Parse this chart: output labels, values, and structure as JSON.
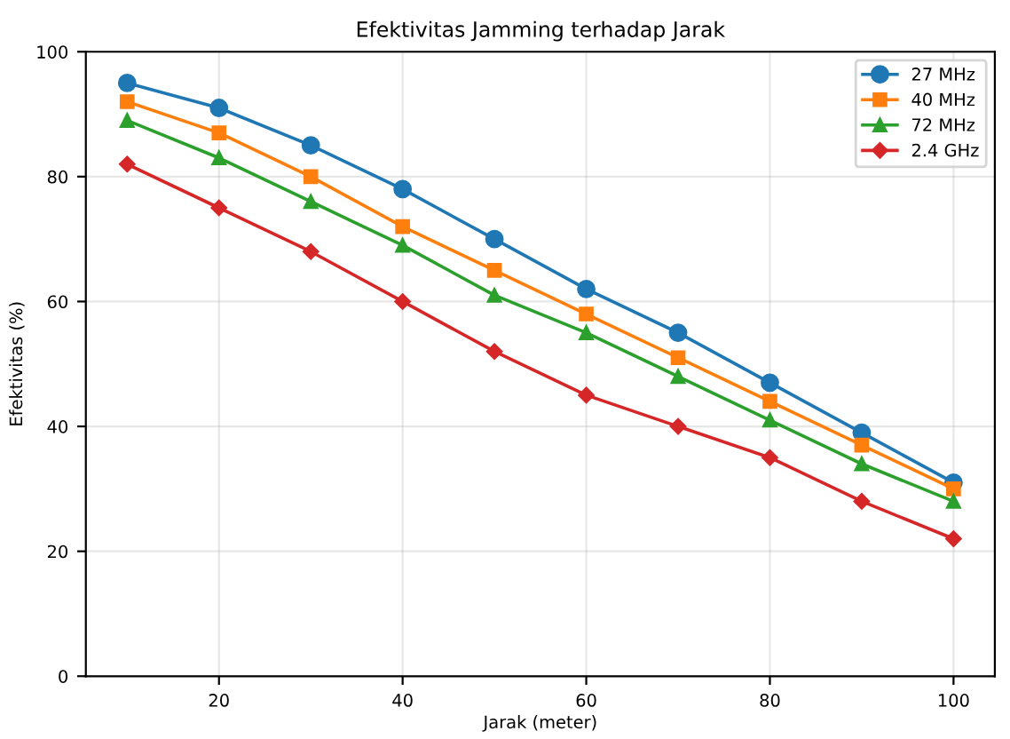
{
  "chart_data": {
    "type": "line",
    "title": "Efektivitas Jamming terhadap Jarak",
    "xlabel": "Jarak (meter)",
    "ylabel": "Efektivitas (%)",
    "x": [
      10,
      20,
      30,
      40,
      50,
      60,
      70,
      80,
      90,
      100
    ],
    "series": [
      {
        "name": "27 MHz",
        "color": "#1f77b4",
        "marker": "circle",
        "values": [
          95,
          91,
          85,
          78,
          70,
          62,
          55,
          47,
          39,
          31
        ]
      },
      {
        "name": "40 MHz",
        "color": "#ff7f0e",
        "marker": "square",
        "values": [
          92,
          87,
          80,
          72,
          65,
          58,
          51,
          44,
          37,
          30
        ]
      },
      {
        "name": "72 MHz",
        "color": "#2ca02c",
        "marker": "triangle",
        "values": [
          89,
          83,
          76,
          69,
          61,
          55,
          48,
          41,
          34,
          28
        ]
      },
      {
        "name": "2.4 GHz",
        "color": "#d62728",
        "marker": "diamond",
        "values": [
          82,
          75,
          68,
          60,
          52,
          45,
          40,
          35,
          28,
          22
        ]
      }
    ],
    "xlim": [
      5.5,
      104.5
    ],
    "xticks": [
      20,
      40,
      60,
      80,
      100
    ],
    "ylim": [
      0,
      100
    ],
    "yticks": [
      0,
      20,
      40,
      60,
      80,
      100
    ],
    "grid": true,
    "legend": "top right",
    "line_style": "solid"
  }
}
